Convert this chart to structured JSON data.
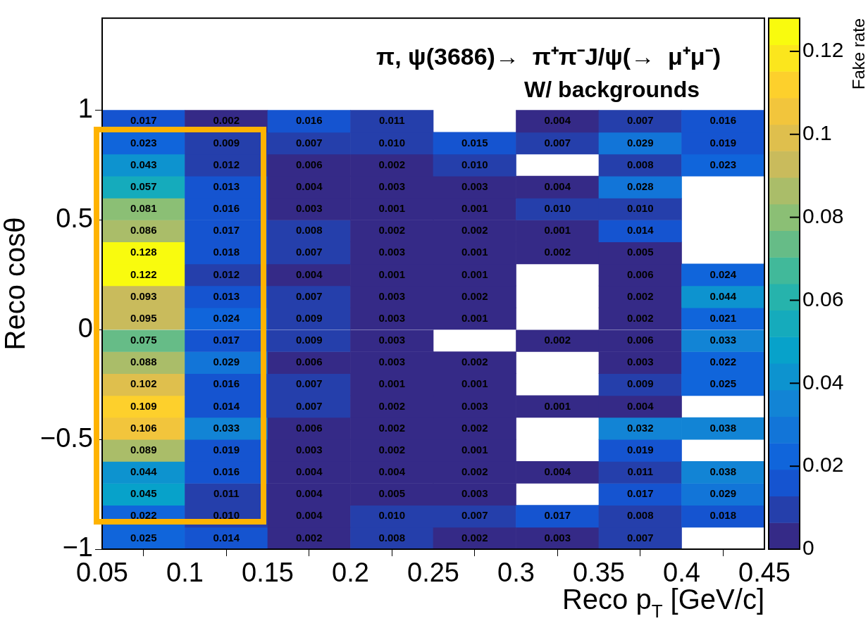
{
  "chart_data": {
    "type": "heatmap",
    "title": "π, ψ(3686)→  π⁺π⁻J/ψ(→  μ⁺μ⁻)",
    "subtitle": "W/ backgrounds",
    "xlabel": "Reco p$_{T}$ [GeV/c]",
    "ylabel": "Reco cosθ",
    "clabel": "Fake rate",
    "x": [
      0.075,
      0.125,
      0.175,
      0.225,
      0.275,
      0.325,
      0.375,
      0.425
    ],
    "y": [
      0.95,
      0.85,
      0.75,
      0.65,
      0.55,
      0.45,
      0.35,
      0.25,
      0.15,
      0.05,
      -0.05,
      -0.15,
      -0.25,
      -0.35,
      -0.45,
      -0.55,
      -0.65,
      -0.75,
      -0.85,
      -0.95
    ],
    "cells": [
      [
        0.017,
        0.002,
        0.016,
        0.011,
        null,
        0.004,
        0.007,
        0.016
      ],
      [
        0.023,
        0.009,
        0.007,
        0.01,
        0.015,
        0.007,
        0.029,
        0.019
      ],
      [
        0.043,
        0.012,
        0.006,
        0.002,
        0.01,
        null,
        0.008,
        0.023
      ],
      [
        0.057,
        0.013,
        0.004,
        0.003,
        0.003,
        0.004,
        0.028,
        null
      ],
      [
        0.081,
        0.016,
        0.003,
        0.001,
        0.001,
        0.01,
        0.01,
        null
      ],
      [
        0.086,
        0.017,
        0.008,
        0.002,
        0.002,
        0.001,
        0.014,
        null
      ],
      [
        0.128,
        0.018,
        0.007,
        0.003,
        0.001,
        0.002,
        0.005,
        null
      ],
      [
        0.122,
        0.012,
        0.004,
        0.001,
        0.001,
        null,
        0.006,
        0.024
      ],
      [
        0.093,
        0.013,
        0.007,
        0.003,
        0.002,
        null,
        0.002,
        0.044
      ],
      [
        0.095,
        0.024,
        0.009,
        0.003,
        0.001,
        null,
        0.002,
        0.021
      ],
      [
        0.075,
        0.017,
        0.009,
        0.003,
        null,
        0.002,
        0.006,
        0.033
      ],
      [
        0.088,
        0.029,
        0.006,
        0.003,
        0.002,
        null,
        0.003,
        0.022
      ],
      [
        0.102,
        0.016,
        0.007,
        0.001,
        0.001,
        null,
        0.009,
        0.025
      ],
      [
        0.109,
        0.014,
        0.007,
        0.002,
        0.003,
        0.001,
        0.004,
        null
      ],
      [
        0.106,
        0.033,
        0.006,
        0.002,
        0.002,
        null,
        0.032,
        0.038
      ],
      [
        0.089,
        0.019,
        0.003,
        0.002,
        0.001,
        null,
        0.019,
        null
      ],
      [
        0.044,
        0.016,
        0.004,
        0.004,
        0.002,
        0.004,
        0.011,
        0.038
      ],
      [
        0.045,
        0.011,
        0.004,
        0.005,
        0.003,
        null,
        0.017,
        0.029
      ],
      [
        0.022,
        0.01,
        0.004,
        0.01,
        0.007,
        0.017,
        0.008,
        0.018
      ],
      [
        0.025,
        0.014,
        0.002,
        0.008,
        0.002,
        0.003,
        0.007,
        null
      ]
    ],
    "xlim": [
      0.05,
      0.45
    ],
    "xticks": [
      0.05,
      0.1,
      0.15,
      0.2,
      0.25,
      0.3,
      0.35,
      0.4,
      0.45
    ],
    "ylim": [
      -1,
      1.42
    ],
    "yticks": [
      {
        "value": -1,
        "label": "−1"
      },
      {
        "value": -0.5,
        "label": "−0.5"
      },
      0,
      0.5,
      1
    ],
    "clim": [
      0,
      0.128
    ],
    "cticks": [
      0,
      0.02,
      0.04,
      0.06,
      0.08,
      0.1,
      0.12
    ],
    "cell_labels": [
      [
        "0.017",
        "0.002",
        "0.016",
        "0.011",
        null,
        "0.004",
        "0.007",
        "0.016"
      ],
      [
        "0.023",
        "0.009",
        "0.007",
        "0.010",
        "0.015",
        "0.007",
        "0.029",
        "0.019"
      ],
      [
        "0.043",
        "0.012",
        "0.006",
        "0.002",
        "0.010",
        null,
        "0.008",
        "0.023"
      ],
      [
        "0.057",
        "0.013",
        "0.004",
        "0.003",
        "0.003",
        "0.004",
        "0.028",
        null
      ],
      [
        "0.081",
        "0.016",
        "0.003",
        "0.001",
        "0.001",
        "0.010",
        "0.010",
        null
      ],
      [
        "0.086",
        "0.017",
        "0.008",
        "0.002",
        "0.002",
        "0.001",
        "0.014",
        null
      ],
      [
        "0.128",
        "0.018",
        "0.007",
        "0.003",
        "0.001",
        "0.002",
        "0.005",
        null
      ],
      [
        "0.122",
        "0.012",
        "0.004",
        "0.001",
        "0.001",
        null,
        "0.006",
        "0.024"
      ],
      [
        "0.093",
        "0.013",
        "0.007",
        "0.003",
        "0.002",
        null,
        "0.002",
        "0.044"
      ],
      [
        "0.095",
        "0.024",
        "0.009",
        "0.003",
        "0.001",
        null,
        "0.002",
        "0.021"
      ],
      [
        "0.075",
        "0.017",
        "0.009",
        "0.003",
        null,
        "0.002",
        "0.006",
        "0.033"
      ],
      [
        "0.088",
        "0.029",
        "0.006",
        "0.003",
        "0.002",
        null,
        "0.003",
        "0.022"
      ],
      [
        "0.102",
        "0.016",
        "0.007",
        "0.001",
        "0.001",
        null,
        "0.009",
        "0.025"
      ],
      [
        "0.109",
        "0.014",
        "0.007",
        "0.002",
        "0.003",
        "0.001",
        "0.004",
        null
      ],
      [
        "0.106",
        "0.033",
        "0.006",
        "0.002",
        "0.002",
        null,
        "0.032",
        "0.038"
      ],
      [
        "0.089",
        "0.019",
        "0.003",
        "0.002",
        "0.001",
        null,
        "0.019",
        null
      ],
      [
        "0.044",
        "0.016",
        "0.004",
        "0.004",
        "0.002",
        "0.004",
        "0.011",
        "0.038"
      ],
      [
        "0.045",
        "0.011",
        "0.004",
        "0.005",
        "0.003",
        null,
        "0.017",
        "0.029"
      ],
      [
        "0.022",
        "0.010",
        "0.004",
        "0.010",
        "0.007",
        "0.017",
        "0.008",
        "0.018"
      ],
      [
        "0.025",
        "0.014",
        "0.002",
        "0.008",
        "0.002",
        "0.003",
        "0.007",
        null
      ]
    ]
  }
}
